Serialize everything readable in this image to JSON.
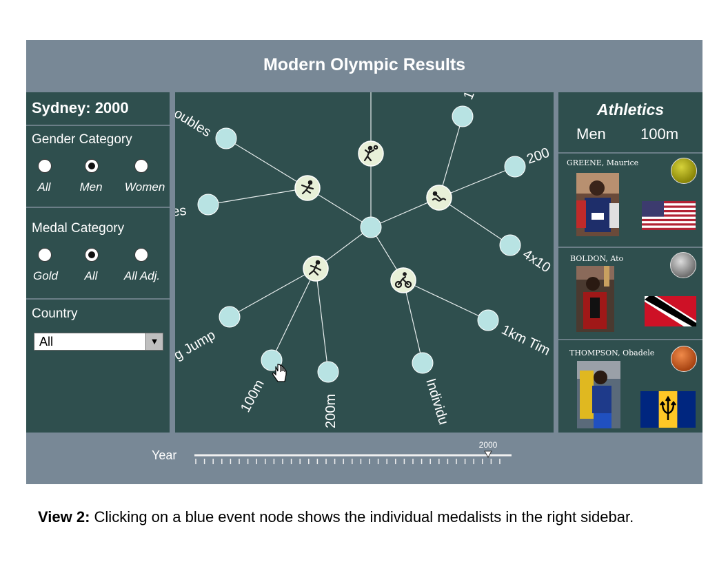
{
  "app": {
    "title": "Modern Olympic Results"
  },
  "left": {
    "games": "Sydney: 2000",
    "gender": {
      "title": "Gender Category",
      "options": [
        "All",
        "Men",
        "Women"
      ],
      "selected": "Men"
    },
    "medal": {
      "title": "Medal Category",
      "options": [
        "Gold",
        "All",
        "All Adj."
      ],
      "selected": "All"
    },
    "country": {
      "title": "Country",
      "value": "All",
      "arrow": "▼"
    }
  },
  "graph": {
    "event_labels": [
      "oubles",
      "es",
      "g Jump",
      "100m",
      "200m",
      "Individu",
      "1km Tim",
      "4x10",
      "200",
      "1"
    ],
    "sport_icons": [
      "tennis-icon",
      "volleyball-icon",
      "athletics-icon",
      "cycling-icon",
      "swimming-icon"
    ]
  },
  "right": {
    "sport": "Athletics",
    "gender": "Men",
    "event": "100m",
    "medalists": [
      {
        "name": "GREENE, Maurice",
        "medal": "gold",
        "medal_color": "#9c9a0c",
        "country_flag": "usa-flag-icon"
      },
      {
        "name": "BOLDON, Ato",
        "medal": "silver",
        "medal_color": "#8a8a8a",
        "country_flag": "trinidad-tobago-flag-icon"
      },
      {
        "name": "THOMPSON, Obadele",
        "medal": "bronze",
        "medal_color": "#c0561e",
        "country_flag": "barbados-flag-icon"
      }
    ]
  },
  "timeline": {
    "label": "Year",
    "selected_year": "2000"
  },
  "caption": {
    "bold": "View 2:",
    "text": " Clicking on a blue event node shows the individual medalists in the right sidebar."
  },
  "colors": {
    "panel": "#2f4f4e",
    "frame": "#788896",
    "event_node": "#b8e3e3",
    "sport_node": "#e8f0d8"
  }
}
